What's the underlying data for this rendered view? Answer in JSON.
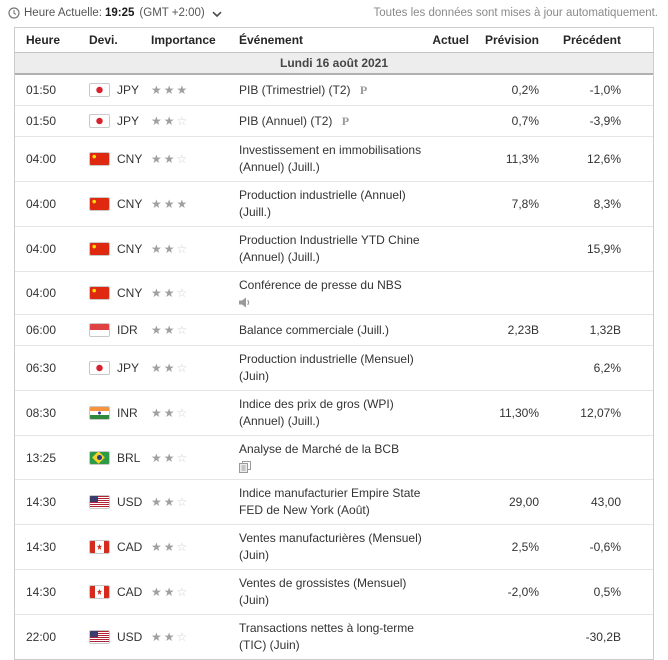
{
  "topbar": {
    "current_time_label": "Heure Actuelle:",
    "current_time": "19:25",
    "timezone": "(GMT +2:00)",
    "update_notice": "Toutes les données sont mises à jour automatiquement."
  },
  "table": {
    "columns": {
      "time": "Heure",
      "currency": "Devi.",
      "importance": "Importance",
      "event": "Événement",
      "actual": "Actuel",
      "forecast": "Prévision",
      "previous": "Précédent"
    },
    "date_header": "Lundi 16 août 2021",
    "rows": [
      {
        "time": "01:50",
        "currency": "JPY",
        "flag": "jpy",
        "importance": 3,
        "event": "PIB (Trimestriel) (T2)",
        "icon": "preliminary",
        "actual": "",
        "forecast": "0,2%",
        "previous": "-1,0%"
      },
      {
        "time": "01:50",
        "currency": "JPY",
        "flag": "jpy",
        "importance": 2,
        "event": "PIB (Annuel) (T2)",
        "icon": "preliminary",
        "actual": "",
        "forecast": "0,7%",
        "previous": "-3,9%"
      },
      {
        "time": "04:00",
        "currency": "CNY",
        "flag": "cny",
        "importance": 2,
        "event": "Investissement en immobilisations (Annuel) (Juill.)",
        "icon": "",
        "actual": "",
        "forecast": "11,3%",
        "previous": "12,6%"
      },
      {
        "time": "04:00",
        "currency": "CNY",
        "flag": "cny",
        "importance": 3,
        "event": "Production industrielle (Annuel) (Juill.)",
        "icon": "",
        "actual": "",
        "forecast": "7,8%",
        "previous": "8,3%"
      },
      {
        "time": "04:00",
        "currency": "CNY",
        "flag": "cny",
        "importance": 2,
        "event": "Production Industrielle YTD Chine (Annuel) (Juill.)",
        "icon": "",
        "actual": "",
        "forecast": "",
        "previous": "15,9%"
      },
      {
        "time": "04:00",
        "currency": "CNY",
        "flag": "cny",
        "importance": 2,
        "event": "Conférence de presse du NBS",
        "icon": "speech",
        "actual": "",
        "forecast": "",
        "previous": ""
      },
      {
        "time": "06:00",
        "currency": "IDR",
        "flag": "idr",
        "importance": 2,
        "event": "Balance commerciale (Juill.)",
        "icon": "",
        "actual": "",
        "forecast": "2,23B",
        "previous": "1,32B"
      },
      {
        "time": "06:30",
        "currency": "JPY",
        "flag": "jpy",
        "importance": 2,
        "event": "Production industrielle (Mensuel) (Juin)",
        "icon": "",
        "actual": "",
        "forecast": "",
        "previous": "6,2%"
      },
      {
        "time": "08:30",
        "currency": "INR",
        "flag": "inr",
        "importance": 2,
        "event": "Indice des prix de gros (WPI) (Annuel) (Juill.)",
        "icon": "",
        "actual": "",
        "forecast": "11,30%",
        "previous": "12,07%"
      },
      {
        "time": "13:25",
        "currency": "BRL",
        "flag": "brl",
        "importance": 2,
        "event": "Analyse de Marché de la BCB",
        "icon": "report",
        "actual": "",
        "forecast": "",
        "previous": ""
      },
      {
        "time": "14:30",
        "currency": "USD",
        "flag": "usd",
        "importance": 2,
        "event": "Indice manufacturier Empire State FED de New York (Août)",
        "icon": "",
        "actual": "",
        "forecast": "29,00",
        "previous": "43,00"
      },
      {
        "time": "14:30",
        "currency": "CAD",
        "flag": "cad",
        "importance": 2,
        "event": "Ventes manufacturières (Mensuel) (Juin)",
        "icon": "",
        "actual": "",
        "forecast": "2,5%",
        "previous": "-0,6%"
      },
      {
        "time": "14:30",
        "currency": "CAD",
        "flag": "cad",
        "importance": 2,
        "event": "Ventes de grossistes (Mensuel) (Juin)",
        "icon": "",
        "actual": "",
        "forecast": "-2,0%",
        "previous": "0,5%"
      },
      {
        "time": "22:00",
        "currency": "USD",
        "flag": "usd",
        "importance": 2,
        "event": "Transactions nettes à long-terme (TIC) (Juin)",
        "icon": "",
        "actual": "",
        "forecast": "",
        "previous": "-30,2B"
      }
    ]
  },
  "colors": {
    "header_text": "#262626",
    "body_text": "#333333",
    "muted_text": "#8a8a8a",
    "star_filled": "#a0a0a0",
    "star_empty": "#cfcfcf",
    "date_band_bg": "#ededed",
    "row_border": "#e5e5e5"
  }
}
